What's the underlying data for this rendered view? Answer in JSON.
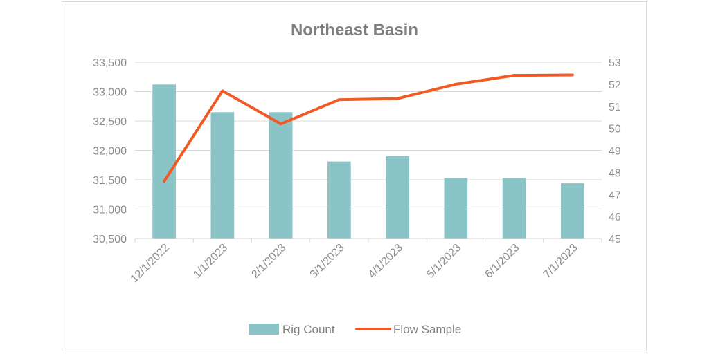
{
  "chart_data": {
    "type": "bar",
    "title": "Northeast Basin",
    "categories": [
      "12/1/2022",
      "1/1/2023",
      "2/1/2023",
      "3/1/2023",
      "4/1/2023",
      "5/1/2023",
      "6/1/2023",
      "7/1/2023"
    ],
    "series": [
      {
        "name": "Rig Count",
        "type": "bar",
        "axis": "left",
        "color": "#8bc4c7",
        "values": [
          33120,
          32650,
          32650,
          31810,
          31900,
          31530,
          31530,
          31440
        ]
      },
      {
        "name": "Flow Sample",
        "type": "line",
        "axis": "right",
        "color": "#f15a24",
        "values": [
          47.6,
          51.7,
          50.2,
          51.3,
          51.35,
          52.0,
          52.4,
          52.42
        ]
      }
    ],
    "y_left": {
      "ylim": [
        30500,
        33500
      ],
      "ticks": [
        30500,
        31000,
        31500,
        32000,
        32500,
        33000,
        33500
      ],
      "tick_labels": [
        "30,500",
        "31,000",
        "31,500",
        "32,000",
        "32,500",
        "33,000",
        "33,500"
      ]
    },
    "y_right": {
      "ylim": [
        45,
        53
      ],
      "ticks": [
        45,
        46,
        47,
        48,
        49,
        50,
        51,
        52,
        53
      ],
      "tick_labels": [
        "45",
        "46",
        "47",
        "48",
        "49",
        "50",
        "51",
        "52",
        "53"
      ]
    },
    "grid": true,
    "legend_position": "bottom"
  }
}
